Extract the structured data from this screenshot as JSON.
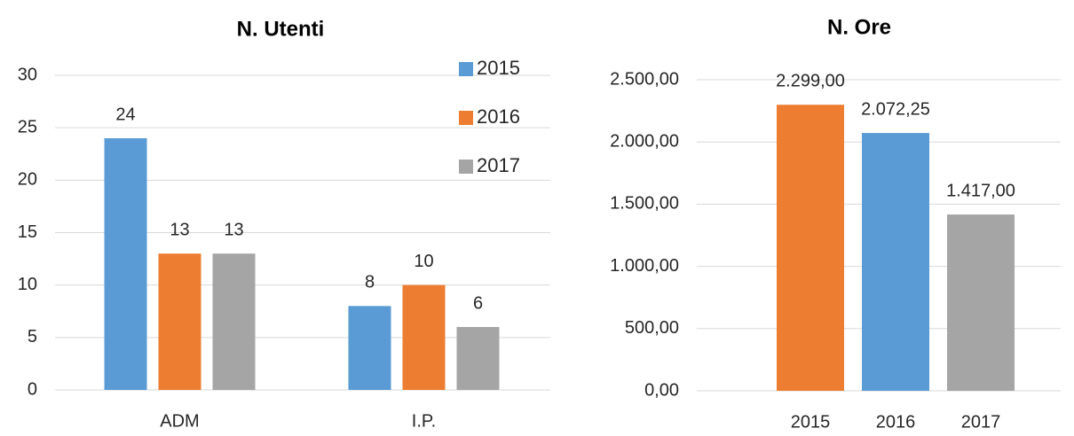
{
  "chart_data": [
    {
      "type": "bar",
      "title": "N. Utenti",
      "categories": [
        "ADM",
        "I.P."
      ],
      "series": [
        {
          "name": "2015",
          "color": "#5b9bd5",
          "values": [
            24,
            8
          ]
        },
        {
          "name": "2016",
          "color": "#ed7d31",
          "values": [
            13,
            10
          ]
        },
        {
          "name": "2017",
          "color": "#a5a5a5",
          "values": [
            13,
            6
          ]
        }
      ],
      "ylim": [
        0,
        30
      ],
      "yticks": [
        0,
        5,
        10,
        15,
        20,
        25,
        30
      ],
      "grid": true,
      "legend": "top right"
    },
    {
      "type": "bar",
      "title": "N. Ore",
      "categories": [
        "2015",
        "2016",
        "2017"
      ],
      "values": [
        2299,
        2072.25,
        1417
      ],
      "value_labels": [
        "2.299,00",
        "2.072,25",
        "1.417,00"
      ],
      "colors": [
        "#ed7d31",
        "#5b9bd5",
        "#a5a5a5"
      ],
      "ylim": [
        0,
        2500
      ],
      "yticks": [
        {
          "value": 0,
          "label": "0,00"
        },
        {
          "value": 500,
          "label": "500,00"
        },
        {
          "value": 1000,
          "label": "1.000,00"
        },
        {
          "value": 1500,
          "label": "1.500,00"
        },
        {
          "value": 2000,
          "label": "2.000,00"
        },
        {
          "value": 2500,
          "label": "2.500,00"
        }
      ],
      "grid": true
    }
  ]
}
